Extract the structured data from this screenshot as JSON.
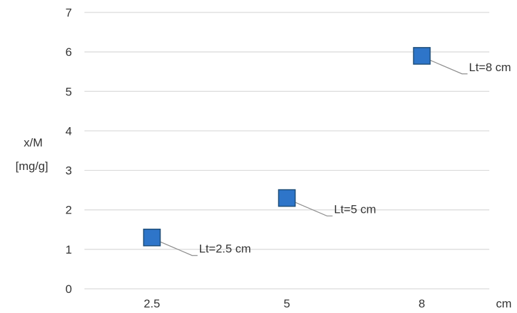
{
  "chart_data": {
    "type": "scatter",
    "ylabel_line1": "x/M",
    "ylabel_line2": "[mg/g]",
    "xlabel": "cm",
    "categories": [
      "2.5",
      "5",
      "8"
    ],
    "yticks": [
      "0",
      "1",
      "2",
      "3",
      "4",
      "5",
      "6",
      "7"
    ],
    "ylim": [
      0,
      7
    ],
    "grid": true,
    "marker_color": "#2e75c9",
    "marker_border": "#1f4e79",
    "gridline_color": "#d9d9d9",
    "leader_color": "#8c8c8c",
    "points": [
      {
        "category": "2.5",
        "y": 1.3,
        "label": "Lt=2.5 cm"
      },
      {
        "category": "5",
        "y": 2.3,
        "label": "Lt=5 cm"
      },
      {
        "category": "8",
        "y": 5.9,
        "label": "Lt=8 cm"
      }
    ]
  }
}
